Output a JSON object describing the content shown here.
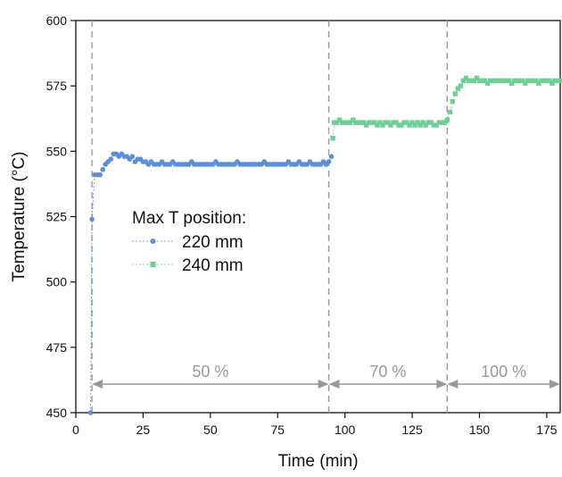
{
  "chart_data": {
    "type": "scatter",
    "xlabel": "Time (min)",
    "ylabel": "Temperature (°C)",
    "xlim": [
      0,
      180
    ],
    "ylim": [
      450,
      600
    ],
    "xticks": [
      0,
      25,
      50,
      75,
      100,
      125,
      150,
      175
    ],
    "yticks": [
      450,
      475,
      500,
      525,
      550,
      575,
      600
    ],
    "grid": false,
    "legend": {
      "title": "Max T position:",
      "placement": "center-left",
      "entries": [
        "220 mm",
        "240 mm"
      ]
    },
    "vlines": [
      6,
      94,
      138
    ],
    "regions": [
      {
        "label": "50 %",
        "from": 6,
        "to": 94
      },
      {
        "label": "70 %",
        "from": 94,
        "to": 138
      },
      {
        "label": "100 %",
        "from": 138,
        "to": 180
      }
    ],
    "colors": {
      "series_220": "#5b8fd9",
      "series_240": "#6fcf97",
      "annotation": "#999999",
      "axis": "#111111"
    },
    "series": [
      {
        "name": "220 mm",
        "marker": "circle",
        "x": [
          5.5,
          6.0,
          7.0,
          8.0,
          9.0,
          10.0,
          11.0,
          12.0,
          13.0,
          14.0,
          15.0,
          16.0,
          17.0,
          18.0,
          19.0,
          20.0,
          21.0,
          22.0,
          23.0,
          24.0,
          25.0,
          26.0,
          27.0,
          28.0,
          29.0,
          30.0,
          31.0,
          32.0,
          33.0,
          34.0,
          35.0,
          36.0,
          37.0,
          38.0,
          39.0,
          40.0,
          41.0,
          42.0,
          43.0,
          44.0,
          45.0,
          46.0,
          47.0,
          48.0,
          49.0,
          50.0,
          51.0,
          52.0,
          53.0,
          54.0,
          55.0,
          56.0,
          57.0,
          58.0,
          59.0,
          60.0,
          61.0,
          62.0,
          63.0,
          64.0,
          65.0,
          66.0,
          67.0,
          68.0,
          69.0,
          70.0,
          71.0,
          72.0,
          73.0,
          74.0,
          75.0,
          76.0,
          77.0,
          78.0,
          79.0,
          80.0,
          81.0,
          82.0,
          83.0,
          84.0,
          85.0,
          86.0,
          87.0,
          88.0,
          89.0,
          90.0,
          91.0,
          92.0,
          93.0,
          94.0,
          95.0
        ],
        "y": [
          450,
          524,
          541,
          541,
          541,
          543,
          545,
          546,
          547,
          549,
          549,
          548,
          549,
          548,
          548,
          547,
          548,
          546,
          547,
          547,
          546,
          546,
          545,
          546,
          545,
          545,
          545,
          546,
          545,
          545,
          545,
          546,
          545,
          545,
          545,
          545,
          545,
          545,
          546,
          545,
          545,
          545,
          545,
          545,
          545,
          545,
          545,
          546,
          545,
          545,
          545,
          545,
          545,
          545,
          545,
          546,
          545,
          545,
          545,
          545,
          545,
          545,
          545,
          545,
          545,
          546,
          545,
          545,
          545,
          545,
          545,
          545,
          545,
          545,
          546,
          545,
          545,
          545,
          546,
          545,
          545,
          545,
          546,
          545,
          545,
          545,
          545,
          546,
          545,
          546,
          548
        ]
      },
      {
        "name": "240 mm",
        "marker": "square",
        "x": [
          95.5,
          96.0,
          97.0,
          98.0,
          99.0,
          100.0,
          101.0,
          102.0,
          103.0,
          104.0,
          105.0,
          106.0,
          107.0,
          108.0,
          109.0,
          110.0,
          111.0,
          112.0,
          113.0,
          114.0,
          115.0,
          116.0,
          117.0,
          118.0,
          119.0,
          120.0,
          121.0,
          122.0,
          123.0,
          124.0,
          125.0,
          126.0,
          127.0,
          128.0,
          129.0,
          130.0,
          131.0,
          132.0,
          133.0,
          134.0,
          135.0,
          136.0,
          137.0,
          138.0,
          139.0,
          140.0,
          141.0,
          142.0,
          143.0,
          144.0,
          145.0,
          146.0,
          147.0,
          148.0,
          149.0,
          150.0,
          151.0,
          152.0,
          153.0,
          154.0,
          155.0,
          156.0,
          157.0,
          158.0,
          159.0,
          160.0,
          161.0,
          162.0,
          163.0,
          164.0,
          165.0,
          166.0,
          167.0,
          168.0,
          169.0,
          170.0,
          171.0,
          172.0,
          173.0,
          174.0,
          175.0,
          176.0,
          177.0,
          178.0,
          179.0,
          180.0
        ],
        "y": [
          555,
          561,
          561,
          562,
          561,
          561,
          561,
          561,
          562,
          561,
          561,
          561,
          561,
          560,
          561,
          561,
          561,
          560,
          561,
          560,
          561,
          561,
          560,
          561,
          561,
          560,
          560,
          561,
          561,
          560,
          561,
          560,
          561,
          560,
          561,
          560,
          561,
          561,
          560,
          560,
          561,
          561,
          561,
          562,
          565,
          569,
          572,
          574,
          575,
          577,
          578,
          577,
          577,
          577,
          578,
          577,
          577,
          577,
          576,
          577,
          577,
          577,
          577,
          577,
          577,
          577,
          577,
          576,
          577,
          577,
          577,
          577,
          576,
          577,
          577,
          577,
          577,
          576,
          577,
          577,
          577,
          577,
          576,
          577,
          577,
          577
        ]
      }
    ]
  }
}
